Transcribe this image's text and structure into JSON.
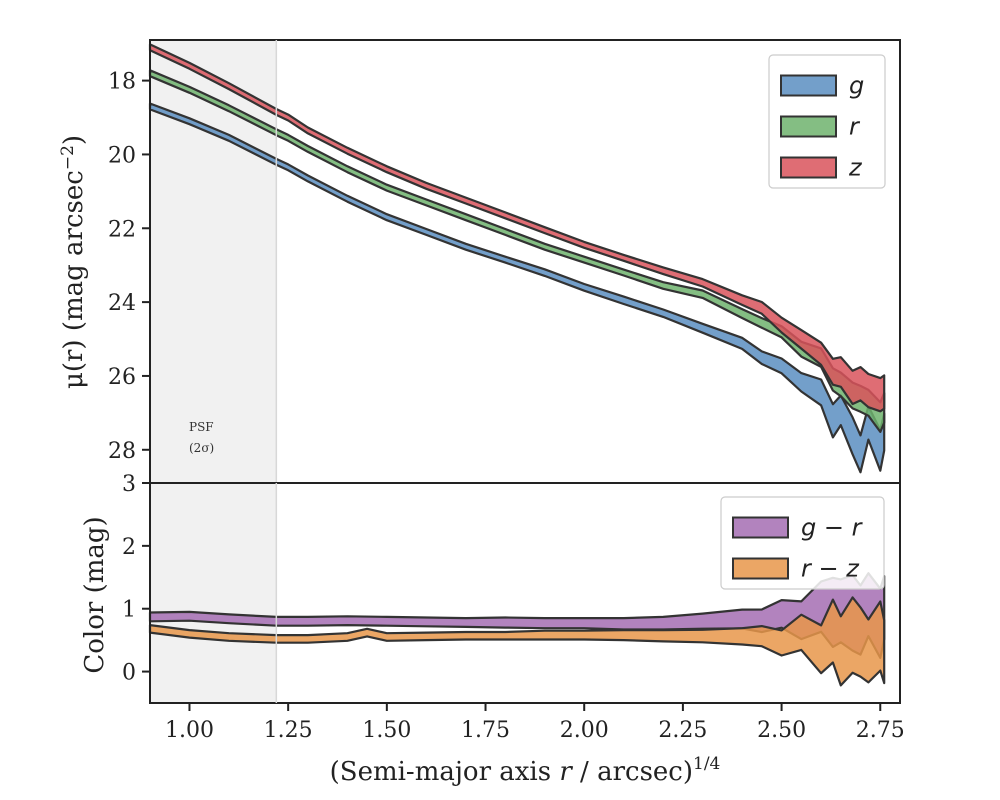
{
  "chart_data": [
    {
      "panel": "top",
      "type": "area",
      "ylabel_prefix": "μ(r) (mag arcsec",
      "ylabel_sup": "−2",
      "ylabel_suffix": ")",
      "xlim": [
        0.9,
        2.8
      ],
      "ylim": [
        28.9,
        16.9
      ],
      "yticks": [
        18,
        20,
        22,
        24,
        26,
        28
      ],
      "psf_band": {
        "x0": 0.9,
        "x1": 1.22,
        "label_line1": "PSF",
        "label_line2": "(2σ)"
      },
      "legend": {
        "position": "top-right"
      },
      "series": [
        {
          "name": "g",
          "color": "#5b8ec1",
          "x": [
            0.9,
            1.0,
            1.1,
            1.22,
            1.25,
            1.3,
            1.4,
            1.5,
            1.6,
            1.7,
            1.8,
            1.9,
            2.0,
            2.1,
            2.2,
            2.3,
            2.4,
            2.45,
            2.5,
            2.55,
            2.6,
            2.63,
            2.65,
            2.68,
            2.7,
            2.72,
            2.75,
            2.76
          ],
          "y": [
            18.7,
            19.1,
            19.55,
            20.2,
            20.35,
            20.65,
            21.2,
            21.7,
            22.1,
            22.5,
            22.85,
            23.2,
            23.6,
            23.95,
            24.3,
            24.7,
            25.15,
            25.45,
            25.8,
            26.1,
            26.5,
            27.2,
            26.9,
            27.7,
            28.0,
            27.4,
            27.9,
            27.6
          ],
          "halfwidth": [
            0.08,
            0.08,
            0.08,
            0.08,
            0.08,
            0.08,
            0.08,
            0.08,
            0.08,
            0.08,
            0.08,
            0.09,
            0.09,
            0.1,
            0.1,
            0.12,
            0.15,
            0.17,
            0.2,
            0.25,
            0.35,
            0.45,
            0.4,
            0.5,
            0.5,
            0.45,
            0.55,
            0.5
          ]
        },
        {
          "name": "r",
          "color": "#6eb36d",
          "x": [
            0.9,
            1.0,
            1.1,
            1.22,
            1.25,
            1.3,
            1.4,
            1.5,
            1.6,
            1.7,
            1.8,
            1.9,
            2.0,
            2.1,
            2.2,
            2.3,
            2.4,
            2.45,
            2.5,
            2.55,
            2.6,
            2.63,
            2.65,
            2.68,
            2.7,
            2.72,
            2.75,
            2.76
          ],
          "y": [
            17.8,
            18.25,
            18.75,
            19.4,
            19.55,
            19.85,
            20.4,
            20.9,
            21.3,
            21.7,
            22.1,
            22.5,
            22.85,
            23.2,
            23.55,
            23.8,
            24.3,
            24.55,
            24.85,
            25.2,
            25.6,
            26.0,
            26.3,
            26.5,
            26.6,
            26.8,
            27.0,
            27.0
          ],
          "halfwidth": [
            0.08,
            0.08,
            0.08,
            0.08,
            0.08,
            0.08,
            0.08,
            0.08,
            0.08,
            0.08,
            0.08,
            0.08,
            0.08,
            0.08,
            0.09,
            0.1,
            0.12,
            0.13,
            0.15,
            0.2,
            0.25,
            0.3,
            0.32,
            0.35,
            0.35,
            0.35,
            0.4,
            0.4
          ]
        },
        {
          "name": "z",
          "color": "#d9535c",
          "x": [
            0.9,
            1.0,
            1.1,
            1.22,
            1.25,
            1.3,
            1.4,
            1.5,
            1.6,
            1.7,
            1.8,
            1.9,
            2.0,
            2.1,
            2.2,
            2.3,
            2.4,
            2.45,
            2.5,
            2.55,
            2.6,
            2.63,
            2.65,
            2.68,
            2.7,
            2.72,
            2.75,
            2.76
          ],
          "y": [
            17.1,
            17.6,
            18.15,
            18.85,
            19.0,
            19.35,
            19.9,
            20.4,
            20.85,
            21.25,
            21.65,
            22.05,
            22.45,
            22.8,
            23.15,
            23.5,
            23.9,
            24.2,
            24.6,
            25.0,
            25.45,
            25.8,
            26.0,
            26.2,
            26.3,
            26.35,
            26.5,
            26.5
          ],
          "halfwidth": [
            0.08,
            0.08,
            0.08,
            0.08,
            0.08,
            0.08,
            0.08,
            0.08,
            0.08,
            0.08,
            0.08,
            0.08,
            0.08,
            0.08,
            0.09,
            0.1,
            0.13,
            0.16,
            0.2,
            0.25,
            0.3,
            0.35,
            0.4,
            0.45,
            0.45,
            0.45,
            0.45,
            0.45
          ]
        }
      ]
    },
    {
      "panel": "bottom",
      "type": "area",
      "ylabel": "Color (mag)",
      "xlabel_prefix": "(Semi-major axis ",
      "xlabel_var": "r",
      "xlabel_mid": " / arcsec)",
      "xlabel_sup": "1/4",
      "xlim": [
        0.9,
        2.8
      ],
      "ylim": [
        -0.5,
        3.0
      ],
      "yticks": [
        0,
        1,
        2,
        3
      ],
      "xticks": [
        "1.00",
        "1.25",
        "1.50",
        "1.75",
        "2.00",
        "2.25",
        "2.50",
        "2.75"
      ],
      "xtick_values": [
        1.0,
        1.25,
        1.5,
        1.75,
        2.0,
        2.25,
        2.5,
        2.75
      ],
      "legend": {
        "position": "top-right"
      },
      "series": [
        {
          "name": "g − r",
          "color": "#a56db3",
          "x": [
            0.9,
            1.0,
            1.1,
            1.22,
            1.3,
            1.4,
            1.5,
            1.6,
            1.7,
            1.8,
            1.9,
            2.0,
            2.1,
            2.2,
            2.3,
            2.4,
            2.45,
            2.5,
            2.55,
            2.6,
            2.63,
            2.65,
            2.68,
            2.7,
            2.72,
            2.75,
            2.76
          ],
          "y": [
            0.87,
            0.88,
            0.84,
            0.8,
            0.8,
            0.81,
            0.8,
            0.79,
            0.78,
            0.78,
            0.77,
            0.77,
            0.76,
            0.77,
            0.8,
            0.82,
            0.85,
            0.85,
            0.9,
            0.95,
            1.0,
            0.95,
            0.9,
            0.9,
            0.95,
            0.9,
            0.9
          ],
          "halfwidth": [
            0.07,
            0.07,
            0.07,
            0.07,
            0.07,
            0.07,
            0.07,
            0.07,
            0.07,
            0.08,
            0.08,
            0.08,
            0.09,
            0.1,
            0.12,
            0.15,
            0.18,
            0.22,
            0.3,
            0.4,
            0.55,
            0.5,
            0.6,
            0.55,
            0.5,
            0.55,
            0.5
          ]
        },
        {
          "name": "r − z",
          "color": "#e8964a",
          "x": [
            0.9,
            1.0,
            1.1,
            1.22,
            1.3,
            1.4,
            1.45,
            1.5,
            1.6,
            1.7,
            1.8,
            1.9,
            2.0,
            2.1,
            2.2,
            2.3,
            2.4,
            2.45,
            2.5,
            2.55,
            2.6,
            2.63,
            2.65,
            2.68,
            2.7,
            2.72,
            2.75,
            2.76
          ],
          "y": [
            0.68,
            0.6,
            0.55,
            0.52,
            0.52,
            0.55,
            0.62,
            0.55,
            0.56,
            0.57,
            0.57,
            0.58,
            0.58,
            0.58,
            0.57,
            0.58,
            0.55,
            0.55,
            0.5,
            0.55,
            0.45,
            0.55,
            0.4,
            0.55,
            0.45,
            0.4,
            0.45,
            0.45
          ],
          "halfwidth": [
            0.06,
            0.06,
            0.06,
            0.06,
            0.06,
            0.06,
            0.06,
            0.06,
            0.06,
            0.06,
            0.06,
            0.07,
            0.07,
            0.08,
            0.09,
            0.1,
            0.13,
            0.16,
            0.2,
            0.28,
            0.38,
            0.5,
            0.55,
            0.6,
            0.55,
            0.5,
            0.55,
            0.5
          ]
        }
      ]
    }
  ]
}
